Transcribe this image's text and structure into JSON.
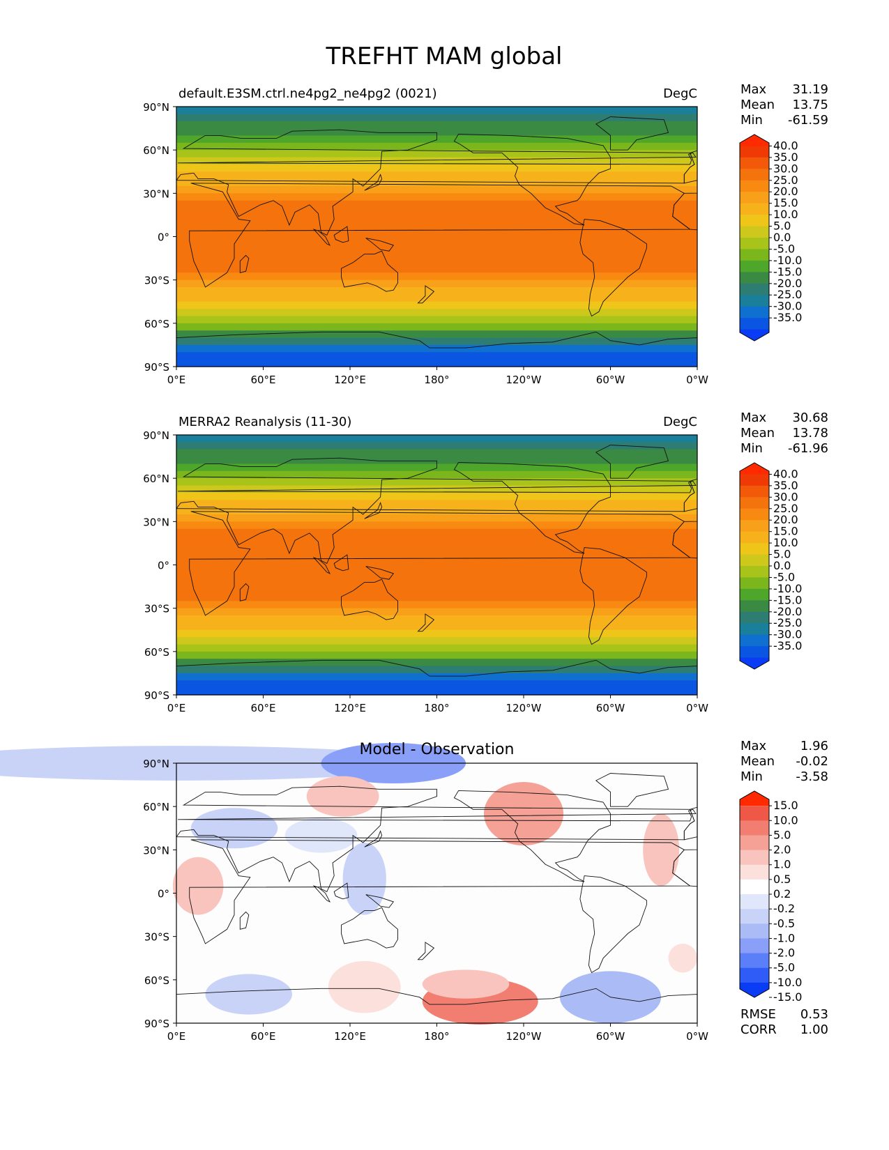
{
  "figure_title": "TREFHT MAM global",
  "colors": {
    "temp_levels": [
      "#0a3cf5",
      "#0b55e3",
      "#1070d0",
      "#197f9a",
      "#2e7d73",
      "#3a8a43",
      "#4ea62a",
      "#7ab61c",
      "#a8c31a",
      "#cfc81c",
      "#efc51a",
      "#f7b21b",
      "#f9a01a",
      "#f88a12",
      "#f5730d",
      "#f25a0a",
      "#ef3a06",
      "#ff2a00"
    ],
    "diff_levels": [
      "#0a3cf5",
      "#2f5cf7",
      "#5b7ff8",
      "#8aa0f8",
      "#aabbf6",
      "#c8d3f7",
      "#e1e7fa",
      "#ffffff",
      "#fbe0dc",
      "#f8c4bd",
      "#f5a196",
      "#f27e71",
      "#ef5846",
      "#ff2a00"
    ]
  },
  "chart_data": [
    {
      "type": "heatmap",
      "subtitle_left": "default.E3SM.ctrl.ne4pg2_ne4pg2 (0021)",
      "subtitle_right": "DegC",
      "stats": [
        {
          "label": "Max",
          "value": "31.19"
        },
        {
          "label": "Mean",
          "value": "13.75"
        },
        {
          "label": "Min",
          "value": "-61.59"
        }
      ],
      "colorbar_ticks": [
        "40.0",
        "35.0",
        "30.0",
        "25.0",
        "20.0",
        "15.0",
        "10.0",
        "5.0",
        "0.0",
        "-5.0",
        "-10.0",
        "-15.0",
        "-20.0",
        "-25.0",
        "-30.0",
        "-35.0"
      ],
      "x_ticks": [
        "0°E",
        "60°E",
        "120°E",
        "180°",
        "120°W",
        "60°W",
        "0°W"
      ],
      "y_ticks": [
        "90°N",
        "60°N",
        "30°N",
        "0°",
        "30°S",
        "60°S",
        "90°S"
      ],
      "xlim": [
        0,
        360
      ],
      "ylim": [
        -90,
        90
      ]
    },
    {
      "type": "heatmap",
      "subtitle_left": "MERRA2 Reanalysis (11-30)",
      "subtitle_right": "DegC",
      "stats": [
        {
          "label": "Max",
          "value": "30.68"
        },
        {
          "label": "Mean",
          "value": "13.78"
        },
        {
          "label": "Min",
          "value": "-61.96"
        }
      ],
      "colorbar_ticks": [
        "40.0",
        "35.0",
        "30.0",
        "25.0",
        "20.0",
        "15.0",
        "10.0",
        "5.0",
        "0.0",
        "-5.0",
        "-10.0",
        "-15.0",
        "-20.0",
        "-25.0",
        "-30.0",
        "-35.0"
      ],
      "x_ticks": [
        "0°E",
        "60°E",
        "120°E",
        "180°",
        "120°W",
        "60°W",
        "0°W"
      ],
      "y_ticks": [
        "90°N",
        "60°N",
        "30°N",
        "0°",
        "30°S",
        "60°S",
        "90°S"
      ],
      "xlim": [
        0,
        360
      ],
      "ylim": [
        -90,
        90
      ]
    },
    {
      "type": "heatmap",
      "title": "Model - Observation",
      "stats": [
        {
          "label": "Max",
          "value": "1.96"
        },
        {
          "label": "Mean",
          "value": "-0.02"
        },
        {
          "label": "Min",
          "value": "-3.58"
        }
      ],
      "colorbar_ticks": [
        "15.0",
        "10.0",
        "5.0",
        "2.0",
        "1.0",
        "0.5",
        "0.2",
        "-0.2",
        "-0.5",
        "-1.0",
        "-2.0",
        "-5.0",
        "-10.0",
        "-15.0"
      ],
      "x_ticks": [
        "0°E",
        "60°E",
        "120°E",
        "180°",
        "120°W",
        "60°W",
        "0°W"
      ],
      "y_ticks": [
        "90°N",
        "60°N",
        "30°N",
        "0°",
        "30°S",
        "60°S",
        "90°S"
      ],
      "xlim": [
        0,
        360
      ],
      "ylim": [
        -90,
        90
      ],
      "metrics": [
        {
          "label": "RMSE",
          "value": "0.53"
        },
        {
          "label": "CORR",
          "value": "1.00"
        }
      ]
    }
  ]
}
